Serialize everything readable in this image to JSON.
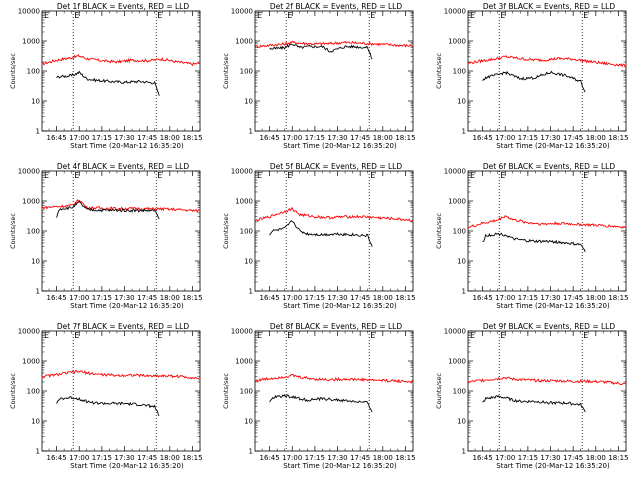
{
  "colors": {
    "events": "#000000",
    "lld": "#ff0000",
    "axes": "#000000",
    "background": "#ffffff"
  },
  "chart_data": [
    {
      "type": "line",
      "title": "Det 1f BLACK = Events, RED = LLD",
      "xlabel": "Start Time (20-Mar-12 16:35:20)",
      "ylabel": "Counts/sec",
      "yscale": "log",
      "ylim": [
        1,
        10000
      ],
      "xticks": [
        "16:45",
        "17:00",
        "17:15",
        "17:30",
        "17:45",
        "18:00",
        "18:15"
      ],
      "xlim": [
        "16:35:20",
        "18:20"
      ],
      "markers": [
        "16:56",
        "17:51"
      ],
      "markers_label": "E",
      "series": [
        {
          "color": "red",
          "x": [
            "16:35:20",
            "16:45",
            "16:55",
            "17:00",
            "17:05",
            "17:15",
            "17:25",
            "17:35",
            "17:45",
            "17:55",
            "18:05",
            "18:15",
            "18:20"
          ],
          "values": [
            170,
            230,
            280,
            320,
            260,
            220,
            200,
            230,
            220,
            250,
            200,
            170,
            180
          ]
        },
        {
          "color": "black",
          "x": [
            "16:45",
            "16:47",
            "16:55",
            "17:00",
            "17:05",
            "17:10",
            "17:20",
            "17:30",
            "17:40",
            "17:50",
            "17:53"
          ],
          "values": [
            60,
            65,
            70,
            90,
            55,
            50,
            45,
            42,
            45,
            40,
            15
          ]
        }
      ]
    },
    {
      "type": "line",
      "title": "Det 2f BLACK = Events, RED = LLD",
      "xlabel": "Start Time (20-Mar-12 16:35:20)",
      "ylabel": "Counts/sec",
      "yscale": "log",
      "ylim": [
        1,
        10000
      ],
      "xticks": [
        "16:45",
        "17:00",
        "17:15",
        "17:30",
        "17:45",
        "18:00",
        "18:15"
      ],
      "xlim": [
        "16:35:20",
        "18:20"
      ],
      "markers": [
        "16:56",
        "17:51"
      ],
      "markers_label": "E",
      "series": [
        {
          "color": "red",
          "x": [
            "16:35:20",
            "16:45",
            "16:55",
            "17:00",
            "17:05",
            "17:15",
            "17:25",
            "17:35",
            "17:45",
            "17:55",
            "18:05",
            "18:15",
            "18:20"
          ],
          "values": [
            650,
            720,
            800,
            900,
            850,
            800,
            820,
            900,
            850,
            800,
            750,
            700,
            700
          ]
        },
        {
          "color": "black",
          "x": [
            "16:45",
            "16:47",
            "16:55",
            "17:00",
            "17:05",
            "17:10",
            "17:20",
            "17:25",
            "17:35",
            "17:40",
            "17:50",
            "17:53"
          ],
          "values": [
            550,
            550,
            600,
            800,
            600,
            650,
            650,
            450,
            650,
            650,
            600,
            250
          ]
        }
      ]
    },
    {
      "type": "line",
      "title": "Det 3f BLACK = Events, RED = LLD",
      "xlabel": "Start Time (20-Mar-12 16:35:20)",
      "ylabel": "Counts/sec",
      "yscale": "log",
      "ylim": [
        1,
        10000
      ],
      "xticks": [
        "16:45",
        "17:00",
        "17:15",
        "17:30",
        "17:45",
        "18:00",
        "18:15"
      ],
      "xlim": [
        "16:35:20",
        "18:20"
      ],
      "markers": [
        "16:56",
        "17:51"
      ],
      "markers_label": "E",
      "series": [
        {
          "color": "red",
          "x": [
            "16:35:20",
            "16:45",
            "16:55",
            "17:00",
            "17:05",
            "17:15",
            "17:25",
            "17:35",
            "17:45",
            "17:55",
            "18:05",
            "18:15",
            "18:20"
          ],
          "values": [
            180,
            220,
            260,
            300,
            280,
            240,
            230,
            260,
            250,
            210,
            180,
            160,
            150
          ]
        },
        {
          "color": "black",
          "x": [
            "16:45",
            "16:47",
            "16:55",
            "17:00",
            "17:05",
            "17:10",
            "17:20",
            "17:30",
            "17:40",
            "17:50",
            "17:53"
          ],
          "values": [
            50,
            60,
            75,
            90,
            70,
            55,
            60,
            90,
            70,
            45,
            20
          ]
        }
      ]
    },
    {
      "type": "line",
      "title": "Det 4f BLACK = Events, RED = LLD",
      "xlabel": "Start Time (20-Mar-12 16:35:20)",
      "ylabel": "Counts/sec",
      "yscale": "log",
      "ylim": [
        1,
        10000
      ],
      "xticks": [
        "16:45",
        "17:00",
        "17:15",
        "17:30",
        "17:45",
        "18:00",
        "18:15"
      ],
      "xlim": [
        "16:35:20",
        "18:20"
      ],
      "markers": [
        "16:56",
        "17:51"
      ],
      "markers_label": "E",
      "series": [
        {
          "color": "red",
          "x": [
            "16:35:20",
            "16:45",
            "16:55",
            "17:00",
            "17:05",
            "17:15",
            "17:25",
            "17:35",
            "17:45",
            "17:55",
            "18:05",
            "18:15",
            "18:20"
          ],
          "values": [
            600,
            650,
            700,
            1100,
            600,
            580,
            560,
            560,
            550,
            540,
            520,
            480,
            470
          ]
        },
        {
          "color": "black",
          "x": [
            "16:45",
            "16:47",
            "16:55",
            "17:00",
            "17:05",
            "17:10",
            "17:20",
            "17:30",
            "17:40",
            "17:50",
            "17:53"
          ],
          "values": [
            300,
            550,
            600,
            900,
            520,
            500,
            490,
            490,
            480,
            480,
            250
          ]
        }
      ]
    },
    {
      "type": "line",
      "title": "Det 5f BLACK = Events, RED = LLD",
      "xlabel": "Start Time (20-Mar-12 16:35:20)",
      "ylabel": "Counts/sec",
      "yscale": "log",
      "ylim": [
        1,
        10000
      ],
      "xticks": [
        "16:45",
        "17:00",
        "17:15",
        "17:30",
        "17:45",
        "18:00",
        "18:15"
      ],
      "xlim": [
        "16:35:20",
        "18:20"
      ],
      "markers": [
        "16:56",
        "17:51"
      ],
      "markers_label": "E",
      "series": [
        {
          "color": "red",
          "x": [
            "16:35:20",
            "16:45",
            "16:55",
            "17:00",
            "17:05",
            "17:15",
            "17:25",
            "17:35",
            "17:45",
            "17:55",
            "18:05",
            "18:15",
            "18:20"
          ],
          "values": [
            220,
            300,
            450,
            550,
            350,
            300,
            280,
            300,
            300,
            280,
            260,
            240,
            220
          ]
        },
        {
          "color": "black",
          "x": [
            "16:45",
            "16:47",
            "16:55",
            "17:00",
            "17:05",
            "17:10",
            "17:20",
            "17:30",
            "17:40",
            "17:50",
            "17:53"
          ],
          "values": [
            80,
            100,
            120,
            220,
            100,
            80,
            75,
            80,
            75,
            70,
            30
          ]
        }
      ]
    },
    {
      "type": "line",
      "title": "Det 6f BLACK = Events, RED = LLD",
      "xlabel": "Start Time (20-Mar-12 16:35:20)",
      "ylabel": "Counts/sec",
      "yscale": "log",
      "ylim": [
        1,
        10000
      ],
      "xticks": [
        "16:45",
        "17:00",
        "17:15",
        "17:30",
        "17:45",
        "18:00",
        "18:15"
      ],
      "xlim": [
        "16:35:20",
        "18:20"
      ],
      "markers": [
        "16:56",
        "17:51"
      ],
      "markers_label": "E",
      "series": [
        {
          "color": "red",
          "x": [
            "16:35:20",
            "16:45",
            "16:55",
            "17:00",
            "17:05",
            "17:15",
            "17:25",
            "17:35",
            "17:45",
            "17:55",
            "18:05",
            "18:15",
            "18:20"
          ],
          "values": [
            130,
            180,
            230,
            320,
            240,
            190,
            170,
            180,
            170,
            160,
            150,
            140,
            130
          ]
        },
        {
          "color": "black",
          "x": [
            "16:45",
            "16:47",
            "16:55",
            "17:00",
            "17:05",
            "17:10",
            "17:20",
            "17:30",
            "17:40",
            "17:50",
            "17:53"
          ],
          "values": [
            40,
            70,
            80,
            75,
            55,
            50,
            45,
            45,
            40,
            35,
            20
          ]
        }
      ]
    },
    {
      "type": "line",
      "title": "Det 7f BLACK = Events, RED = LLD",
      "xlabel": "Start Time (20-Mar-12 16:35:20)",
      "ylabel": "Counts/sec",
      "yscale": "log",
      "ylim": [
        1,
        10000
      ],
      "xticks": [
        "16:45",
        "17:00",
        "17:15",
        "17:30",
        "17:45",
        "18:00",
        "18:15"
      ],
      "xlim": [
        "16:35:20",
        "18:20"
      ],
      "markers": [
        "16:56",
        "17:51"
      ],
      "markers_label": "E",
      "series": [
        {
          "color": "red",
          "x": [
            "16:35:20",
            "16:45",
            "16:55",
            "17:00",
            "17:05",
            "17:15",
            "17:25",
            "17:35",
            "17:45",
            "17:55",
            "18:05",
            "18:15",
            "18:20"
          ],
          "values": [
            300,
            350,
            420,
            450,
            400,
            350,
            330,
            340,
            320,
            320,
            310,
            280,
            260
          ]
        },
        {
          "color": "black",
          "x": [
            "16:45",
            "16:47",
            "16:55",
            "17:00",
            "17:05",
            "17:10",
            "17:20",
            "17:30",
            "17:40",
            "17:50",
            "17:53"
          ],
          "values": [
            35,
            55,
            60,
            55,
            45,
            40,
            38,
            38,
            35,
            30,
            15
          ]
        }
      ]
    },
    {
      "type": "line",
      "title": "Det 8f BLACK = Events, RED = LLD",
      "xlabel": "Start Time (20-Mar-12 16:35:20)",
      "ylabel": "Counts/sec",
      "yscale": "log",
      "ylim": [
        1,
        10000
      ],
      "xticks": [
        "16:45",
        "17:00",
        "17:15",
        "17:30",
        "17:45",
        "18:00",
        "18:15"
      ],
      "xlim": [
        "16:35:20",
        "18:20"
      ],
      "markers": [
        "16:56",
        "17:51"
      ],
      "markers_label": "E",
      "series": [
        {
          "color": "red",
          "x": [
            "16:35:20",
            "16:45",
            "16:55",
            "17:00",
            "17:05",
            "17:15",
            "17:25",
            "17:35",
            "17:45",
            "17:55",
            "18:05",
            "18:15",
            "18:20"
          ],
          "values": [
            220,
            260,
            300,
            330,
            290,
            250,
            240,
            250,
            240,
            230,
            220,
            210,
            200
          ]
        },
        {
          "color": "black",
          "x": [
            "16:45",
            "16:47",
            "16:55",
            "17:00",
            "17:05",
            "17:10",
            "17:20",
            "17:30",
            "17:40",
            "17:50",
            "17:53"
          ],
          "values": [
            40,
            60,
            70,
            65,
            55,
            50,
            55,
            50,
            45,
            40,
            20
          ]
        }
      ]
    },
    {
      "type": "line",
      "title": "Det 9f BLACK = Events, RED = LLD",
      "xlabel": "Start Time (20-Mar-12 16:35:20)",
      "ylabel": "Counts/sec",
      "yscale": "log",
      "ylim": [
        1,
        10000
      ],
      "xticks": [
        "16:45",
        "17:00",
        "17:15",
        "17:30",
        "17:45",
        "18:00",
        "18:15"
      ],
      "xlim": [
        "16:35:20",
        "18:20"
      ],
      "markers": [
        "16:56",
        "17:51"
      ],
      "markers_label": "E",
      "series": [
        {
          "color": "red",
          "x": [
            "16:35:20",
            "16:45",
            "16:55",
            "17:00",
            "17:05",
            "17:15",
            "17:25",
            "17:35",
            "17:45",
            "17:55",
            "18:05",
            "18:15",
            "18:20"
          ],
          "values": [
            200,
            230,
            260,
            280,
            250,
            230,
            220,
            220,
            210,
            210,
            200,
            180,
            170
          ]
        },
        {
          "color": "black",
          "x": [
            "16:45",
            "16:47",
            "16:55",
            "17:00",
            "17:05",
            "17:10",
            "17:20",
            "17:30",
            "17:40",
            "17:50",
            "17:53"
          ],
          "values": [
            40,
            55,
            65,
            60,
            50,
            45,
            45,
            40,
            40,
            35,
            20
          ]
        }
      ]
    }
  ]
}
